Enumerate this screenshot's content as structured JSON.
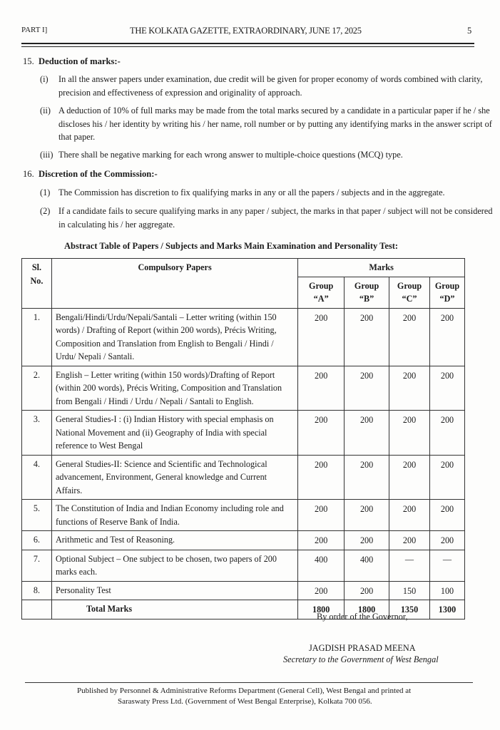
{
  "header": {
    "part": "PART I]",
    "title": "THE KOLKATA GAZETTE, EXTRAORDINARY, JUNE 17, 2025",
    "page": "5"
  },
  "sections": [
    {
      "number": "15.",
      "title": "Deduction of marks:-",
      "items": [
        {
          "n": "(i)",
          "text": "In all the answer papers under examination, due credit will be given for proper economy of words combined with clarity, precision and effectiveness of expression and originality of approach."
        },
        {
          "n": "(ii)",
          "text": "A deduction of 10% of full marks may be made from the total marks secured by a candidate in a particular paper if he / she discloses his / her identity by writing his / her name, roll number or by putting any identifying marks in the answer script of that paper."
        },
        {
          "n": "(iii)",
          "text": "There shall be negative marking for each wrong answer to multiple-choice questions (MCQ) type."
        }
      ]
    },
    {
      "number": "16.",
      "title": "Discretion of the Commission:-",
      "items": [
        {
          "n": "(1)",
          "text": "The Commission has discretion to fix qualifying marks in any or all the papers / subjects and in the aggregate."
        },
        {
          "n": "(2)",
          "text": "If a candidate fails to secure qualifying marks in any paper / subject, the marks in that paper / subject will not be considered in calculating his / her aggregate."
        }
      ]
    }
  ],
  "table": {
    "caption": "Abstract Table of Papers / Subjects and Marks Main Examination and Personality Test:",
    "headers": {
      "sl": "Sl. No.",
      "papers": "Compulsory Papers",
      "marks": "Marks",
      "groups": [
        "Group “A”",
        "Group “B”",
        "Group “C”",
        "Group “D”"
      ]
    },
    "rows": [
      {
        "sl": "1.",
        "paper": "Bengali/Hindi/Urdu/Nepali/Santali – Letter writing (within 150 words) / Drafting of Report (within 200 words), Précis Writing, Composition and Translation from English to Bengali / Hindi / Urdu/ Nepali / Santali.",
        "marks": [
          "200",
          "200",
          "200",
          "200"
        ]
      },
      {
        "sl": "2.",
        "paper": "English – Letter writing (within 150 words)/Drafting of Report (within 200 words), Précis Writing, Composition and Translation from Bengali / Hindi / Urdu / Nepali / Santali to English.",
        "marks": [
          "200",
          "200",
          "200",
          "200"
        ]
      },
      {
        "sl": "3.",
        "paper": "General Studies-I : (i) Indian History with special emphasis on National Movement and (ii) Geography of India with special reference to West Bengal",
        "marks": [
          "200",
          "200",
          "200",
          "200"
        ]
      },
      {
        "sl": "4.",
        "paper": "General Studies-II: Science and Scientific and Technological advancement, Environment, General knowledge and Current Affairs.",
        "marks": [
          "200",
          "200",
          "200",
          "200"
        ]
      },
      {
        "sl": "5.",
        "paper": "The Constitution of India and Indian Economy including role and functions of Reserve Bank of India.",
        "marks": [
          "200",
          "200",
          "200",
          "200"
        ]
      },
      {
        "sl": "6.",
        "paper": "Arithmetic and Test of Reasoning.",
        "marks": [
          "200",
          "200",
          "200",
          "200"
        ]
      },
      {
        "sl": "7.",
        "paper": "Optional Subject – One subject to be chosen, two papers of 200 marks each.",
        "marks": [
          "400",
          "400",
          "—",
          "—"
        ]
      },
      {
        "sl": "8.",
        "paper": "Personality Test",
        "marks": [
          "200",
          "200",
          "150",
          "100"
        ]
      }
    ],
    "total": {
      "label": "Total Marks",
      "marks": [
        "1800",
        "1800",
        "1350",
        "1300"
      ]
    }
  },
  "signature": {
    "order": "By order of the Governor,",
    "name": "JAGDISH PRASAD MEENA",
    "designation": "Secretary to the Government of West Bengal"
  },
  "footer": {
    "line1": "Published by Personnel & Administrative Reforms Department (General Cell), West Bengal and printed at",
    "line2": "Saraswaty Press Ltd. (Government of West Bengal Enterprise), Kolkata 700 056."
  }
}
